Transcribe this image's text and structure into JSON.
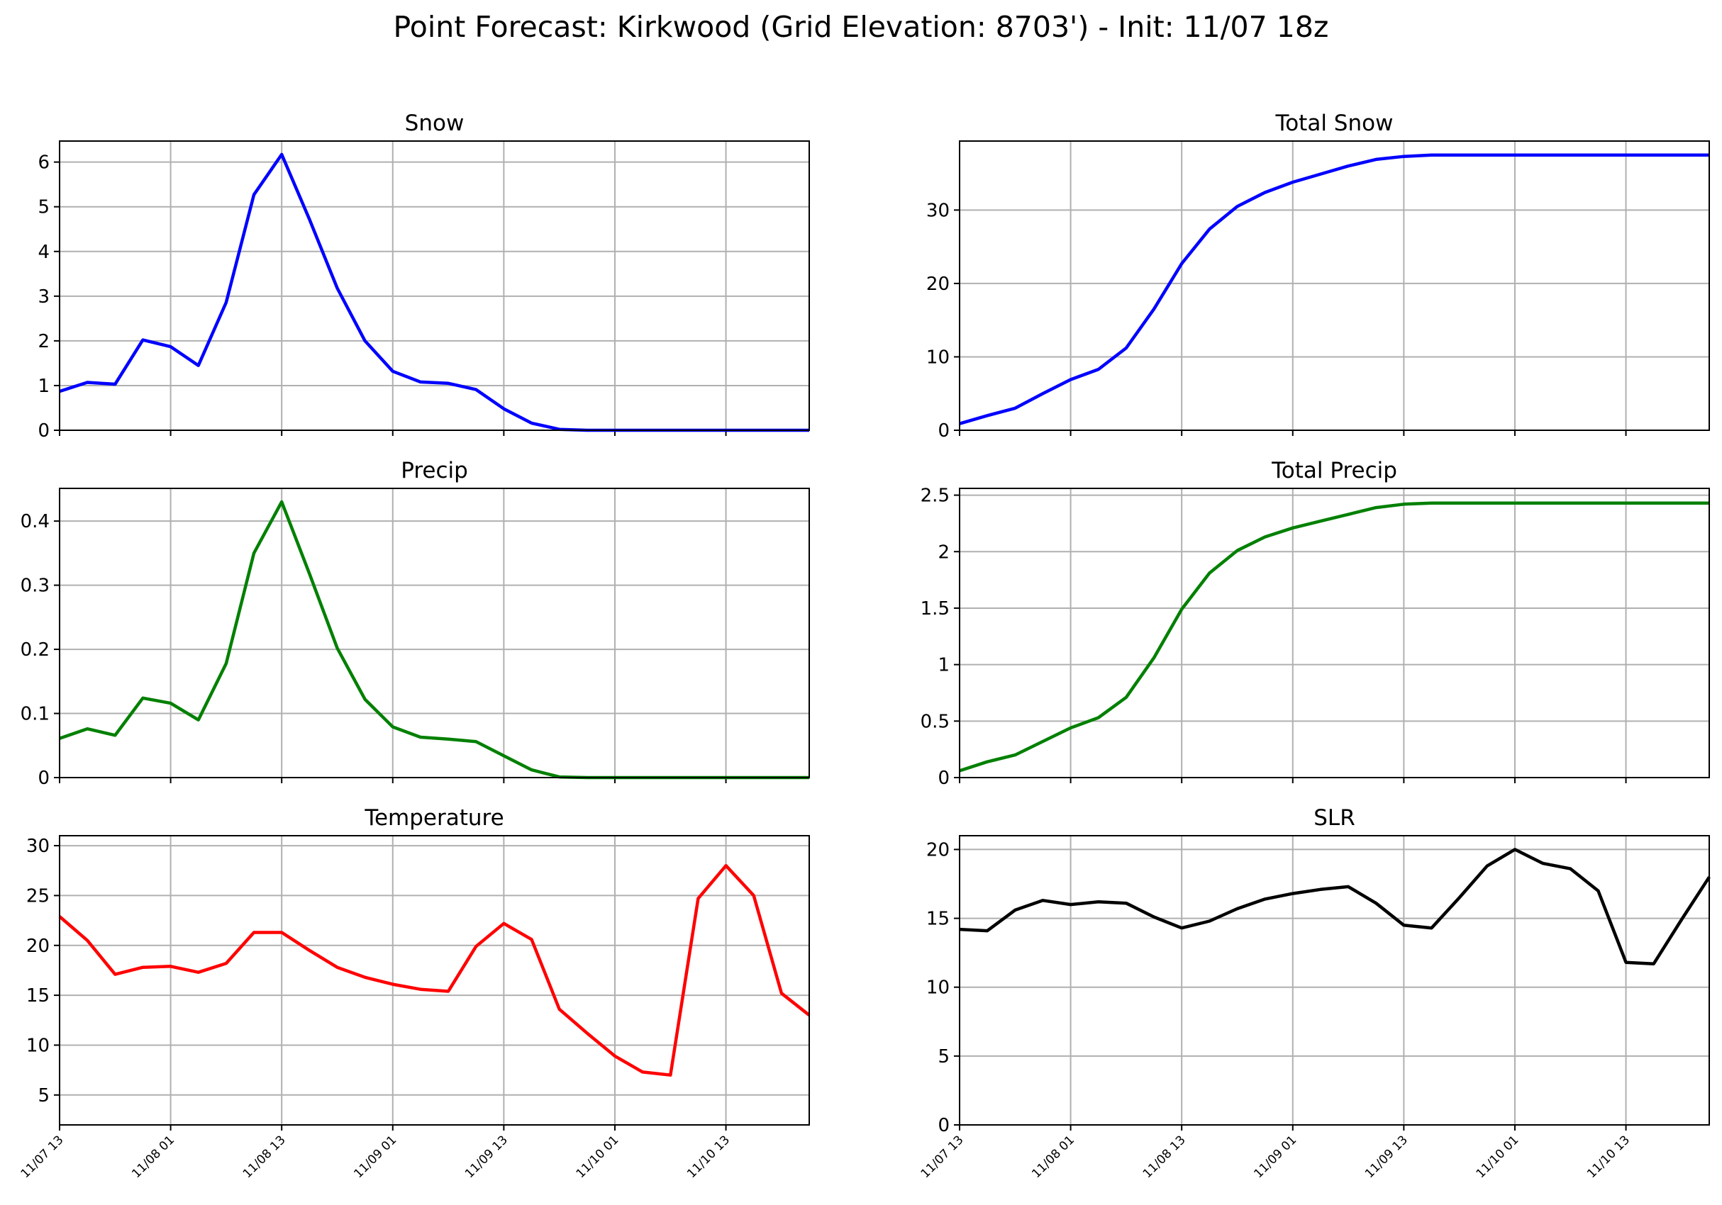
{
  "title": "Point Forecast: Kirkwood (Grid Elevation: 8703') - Init: 11/07 18z",
  "x_tick_labels": [
    "11/07 13",
    "11/08 01",
    "11/08 13",
    "11/09 01",
    "11/09 13",
    "11/10 01",
    "11/10 13"
  ],
  "chart_data": [
    {
      "type": "line",
      "title": "Snow",
      "color": "#0000ff",
      "x_hours": [
        0,
        3,
        6,
        9,
        12,
        15,
        18,
        21,
        24,
        27,
        30,
        33,
        36,
        39,
        42,
        45,
        48,
        51,
        54,
        57,
        60,
        63,
        66,
        69,
        72,
        75,
        78,
        81
      ],
      "values": [
        0.87,
        1.07,
        1.03,
        2.02,
        1.87,
        1.45,
        2.86,
        5.27,
        6.17,
        4.72,
        3.18,
        2.0,
        1.32,
        1.08,
        1.05,
        0.91,
        0.48,
        0.16,
        0.02,
        0,
        0,
        0,
        0,
        0,
        0,
        0,
        0,
        0
      ],
      "yticks": [
        0,
        1,
        2,
        3,
        4,
        5,
        6
      ],
      "ylim": [
        0,
        6.47
      ],
      "grid": true
    },
    {
      "type": "line",
      "title": "Total Snow",
      "color": "#0000ff",
      "x_hours": [
        0,
        3,
        6,
        9,
        12,
        15,
        18,
        21,
        24,
        27,
        30,
        33,
        36,
        39,
        42,
        45,
        48,
        51,
        54,
        57,
        60,
        63,
        66,
        69,
        72,
        75,
        78,
        81
      ],
      "values": [
        0.9,
        2.0,
        3.0,
        5.0,
        6.9,
        8.3,
        11.2,
        16.5,
        22.7,
        27.4,
        30.5,
        32.4,
        33.8,
        34.9,
        36.0,
        36.9,
        37.3,
        37.5,
        37.5,
        37.5,
        37.5,
        37.5,
        37.5,
        37.5,
        37.5,
        37.5,
        37.5,
        37.5
      ],
      "yticks": [
        0,
        10,
        20,
        30
      ],
      "ylim": [
        0,
        39.4
      ],
      "grid": true
    },
    {
      "type": "line",
      "title": "Precip",
      "color": "#008000",
      "x_hours": [
        0,
        3,
        6,
        9,
        12,
        15,
        18,
        21,
        24,
        27,
        30,
        33,
        36,
        39,
        42,
        45,
        48,
        51,
        54,
        57,
        60,
        63,
        66,
        69,
        72,
        75,
        78,
        81
      ],
      "values": [
        0.061,
        0.076,
        0.066,
        0.124,
        0.116,
        0.09,
        0.178,
        0.35,
        0.43,
        0.318,
        0.202,
        0.122,
        0.079,
        0.063,
        0.06,
        0.056,
        0.034,
        0.012,
        0.001,
        0,
        0,
        0,
        0,
        0,
        0,
        0,
        0,
        0
      ],
      "yticks": [
        0.0,
        0.1,
        0.2,
        0.3,
        0.4
      ],
      "ylim": [
        0,
        0.451
      ],
      "grid": true
    },
    {
      "type": "line",
      "title": "Total Precip",
      "color": "#008000",
      "x_hours": [
        0,
        3,
        6,
        9,
        12,
        15,
        18,
        21,
        24,
        27,
        30,
        33,
        36,
        39,
        42,
        45,
        48,
        51,
        54,
        57,
        60,
        63,
        66,
        69,
        72,
        75,
        78,
        81
      ],
      "values": [
        0.06,
        0.14,
        0.2,
        0.32,
        0.44,
        0.53,
        0.71,
        1.06,
        1.49,
        1.81,
        2.01,
        2.13,
        2.21,
        2.27,
        2.33,
        2.39,
        2.42,
        2.43,
        2.43,
        2.43,
        2.43,
        2.43,
        2.43,
        2.43,
        2.43,
        2.43,
        2.43,
        2.43
      ],
      "yticks": [
        0.0,
        0.5,
        1.0,
        1.5,
        2.0,
        2.5
      ],
      "ylim": [
        0,
        2.56
      ],
      "grid": true
    },
    {
      "type": "line",
      "title": "Temperature",
      "color": "#ff0000",
      "x_hours": [
        0,
        3,
        6,
        9,
        12,
        15,
        18,
        21,
        24,
        27,
        30,
        33,
        36,
        39,
        42,
        45,
        48,
        51,
        54,
        57,
        60,
        63,
        66,
        69,
        72,
        75,
        78,
        81
      ],
      "values": [
        22.9,
        20.5,
        17.1,
        17.8,
        17.9,
        17.3,
        18.2,
        21.3,
        21.3,
        19.5,
        17.8,
        16.8,
        16.1,
        15.6,
        15.4,
        19.9,
        22.2,
        20.6,
        13.6,
        11.2,
        8.9,
        7.3,
        7.0,
        24.7,
        28.0,
        25.0,
        15.2,
        13.0
      ],
      "yticks": [
        5,
        10,
        15,
        20,
        25,
        30
      ],
      "ylim": [
        2.0,
        31.0
      ],
      "grid": true
    },
    {
      "type": "line",
      "title": "SLR",
      "color": "#000000",
      "x_hours": [
        0,
        3,
        6,
        9,
        12,
        15,
        18,
        21,
        24,
        27,
        30,
        33,
        36,
        39,
        42,
        45,
        48,
        51,
        54,
        57,
        60,
        63,
        66,
        69,
        72,
        75,
        78,
        81
      ],
      "values": [
        14.2,
        14.1,
        15.6,
        16.3,
        16.0,
        16.2,
        16.1,
        15.1,
        14.3,
        14.8,
        15.7,
        16.4,
        16.8,
        17.1,
        17.3,
        16.1,
        14.5,
        14.3,
        16.5,
        18.8,
        20.0,
        19.0,
        18.6,
        17.0,
        11.8,
        11.7,
        14.9,
        18.0
      ],
      "yticks": [
        0,
        5,
        10,
        15,
        20
      ],
      "ylim": [
        0,
        21.0
      ],
      "grid": true
    }
  ]
}
